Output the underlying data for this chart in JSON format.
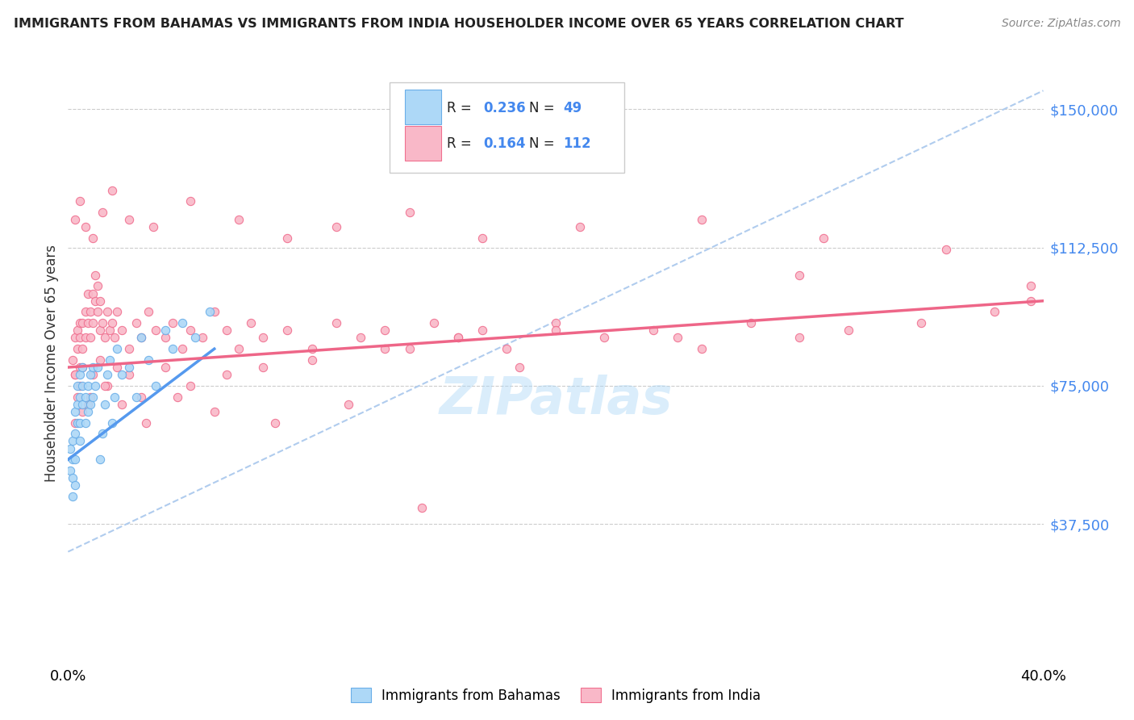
{
  "title": "IMMIGRANTS FROM BAHAMAS VS IMMIGRANTS FROM INDIA HOUSEHOLDER INCOME OVER 65 YEARS CORRELATION CHART",
  "source": "Source: ZipAtlas.com",
  "ylabel": "Householder Income Over 65 years",
  "yticks": [
    37500,
    75000,
    112500,
    150000
  ],
  "ytick_labels": [
    "$37,500",
    "$75,000",
    "$112,500",
    "$150,000"
  ],
  "xlim": [
    0.0,
    0.4
  ],
  "ylim": [
    0,
    162000
  ],
  "bahamas_R": 0.236,
  "bahamas_N": 49,
  "india_R": 0.164,
  "india_N": 112,
  "bahamas_color": "#add8f7",
  "india_color": "#f9b8c8",
  "bahamas_edge_color": "#6aaee8",
  "india_edge_color": "#f07090",
  "bahamas_line_color": "#5599ee",
  "india_line_color": "#ee6688",
  "dash_line_color": "#b0ccee",
  "watermark": "ZIPatlas"
}
